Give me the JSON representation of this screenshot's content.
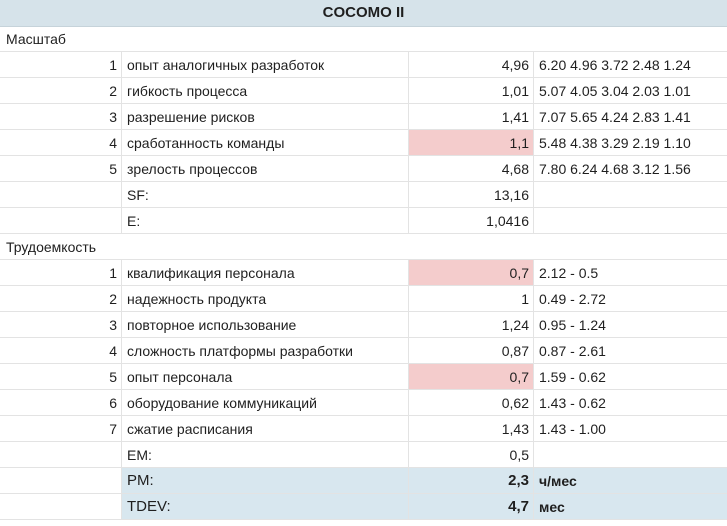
{
  "title": "COCOMO II",
  "scale": {
    "header": "Масштаб",
    "rows": [
      {
        "n": "1",
        "label": "опыт аналогичных разработок",
        "value": "4,96",
        "range": "6.20  4.96  3.72  2.48  1.24"
      },
      {
        "n": "2",
        "label": "гибкость процесса",
        "value": "1,01",
        "range": "5.07  4.05  3.04  2.03  1.01"
      },
      {
        "n": "3",
        "label": "разрешение рисков",
        "value": "1,41",
        "range": "7.07  5.65  4.24  2.83  1.41"
      },
      {
        "n": "4",
        "label": "сработанность команды",
        "value": "1,1",
        "range": "5.48  4.38  3.29  2.19  1.10"
      },
      {
        "n": "5",
        "label": "зрелость процессов",
        "value": "4,68",
        "range": "7.80  6.24  4.68  3.12  1.56"
      }
    ],
    "sf_label": "SF:",
    "sf_value": "13,16",
    "e_label": "E:",
    "e_value": "1,0416"
  },
  "effort": {
    "header": "Трудоемкость",
    "rows": [
      {
        "n": "1",
        "label": "квалификация персонала",
        "value": "0,7",
        "range": "2.12 - 0.5"
      },
      {
        "n": "2",
        "label": "надежность продукта",
        "value": "1",
        "range": "0.49 - 2.72"
      },
      {
        "n": "3",
        "label": "повторное использование",
        "value": "1,24",
        "range": "0.95 - 1.24"
      },
      {
        "n": "4",
        "label": "сложность платформы разработки",
        "value": "0,87",
        "range": "0.87 - 2.61"
      },
      {
        "n": "5",
        "label": "опыт персонала",
        "value": "0,7",
        "range": "1.59 - 0.62"
      },
      {
        "n": "6",
        "label": "оборудование коммуникаций",
        "value": "0,62",
        "range": "1.43 - 0.62"
      },
      {
        "n": "7",
        "label": "сжатие расписания",
        "value": "1,43",
        "range": "1.43 - 1.00"
      }
    ],
    "em_label": "EM:",
    "em_value": "0,5"
  },
  "results": {
    "pm_label": "PM:",
    "pm_value": "2,3",
    "pm_unit": "ч/мес",
    "tdev_label": "TDEV:",
    "tdev_value": "4,7",
    "tdev_unit": "мес"
  },
  "colors": {
    "highlight": "#f4cccc",
    "result_bg": "#d8e7ef",
    "title_bg": "#d6e3ea"
  }
}
